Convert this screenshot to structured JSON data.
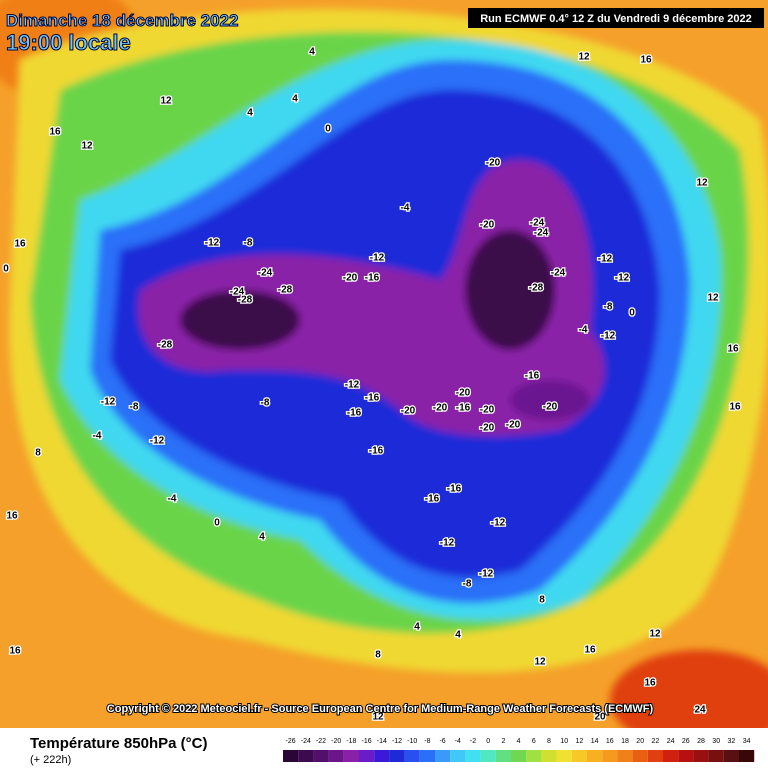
{
  "header": {
    "date": "Dimanche 18 décembre 2022",
    "time": "19:00 locale",
    "run": "Run ECMWF 0.4° 12 Z du Vendredi 9 décembre 2022"
  },
  "copyright": "Copyright © 2022 Meteociel.fr - Source European Centre for Medium-Range Weather Forecasts (ECMWF)",
  "footer": {
    "title": "Température 850hPa (°C)",
    "lead": "(+ 222h)"
  },
  "colorbar": {
    "values": [
      -26,
      -24,
      -22,
      -20,
      -18,
      -16,
      -14,
      -12,
      -10,
      -8,
      -6,
      -4,
      -2,
      0,
      2,
      4,
      6,
      8,
      10,
      12,
      14,
      16,
      18,
      20,
      22,
      24,
      26,
      28,
      30,
      32,
      34
    ],
    "colors": [
      "#2a0636",
      "#3c0a4e",
      "#52106a",
      "#6a1588",
      "#8a20a8",
      "#6a1cc8",
      "#3a1ad8",
      "#1e2ad8",
      "#2a4ff0",
      "#2a6ff8",
      "#3a9af8",
      "#40c8f8",
      "#40e0f0",
      "#50e8c0",
      "#60e080",
      "#70d850",
      "#a0e040",
      "#d0e030",
      "#f0e030",
      "#f8c828",
      "#f8b020",
      "#f59a1e",
      "#f08018",
      "#e86010",
      "#e04010",
      "#d02010",
      "#b81010",
      "#981010",
      "#781010",
      "#581010",
      "#380808"
    ]
  },
  "map_labels": [
    -28,
    -28,
    -24,
    -24,
    -28,
    -20,
    -16,
    -24,
    -24,
    -20,
    -20,
    -28,
    -24,
    -20,
    -20,
    -20,
    -20,
    -20,
    -16,
    -20,
    -20,
    -16,
    -16,
    -16,
    -12,
    -16,
    -16,
    -16,
    -12,
    -12,
    -12,
    -8,
    -12,
    -12,
    -12,
    -8,
    -4,
    0,
    -12,
    -8,
    -12,
    -4,
    -8,
    -12,
    -8,
    -12,
    -4,
    4,
    4,
    4,
    0,
    12,
    16,
    12,
    16,
    12,
    12,
    16,
    12,
    16,
    16,
    12,
    16,
    12,
    16,
    16,
    12,
    20,
    24,
    16,
    8,
    4,
    8,
    4,
    0,
    -4,
    4,
    8,
    0
  ]
}
